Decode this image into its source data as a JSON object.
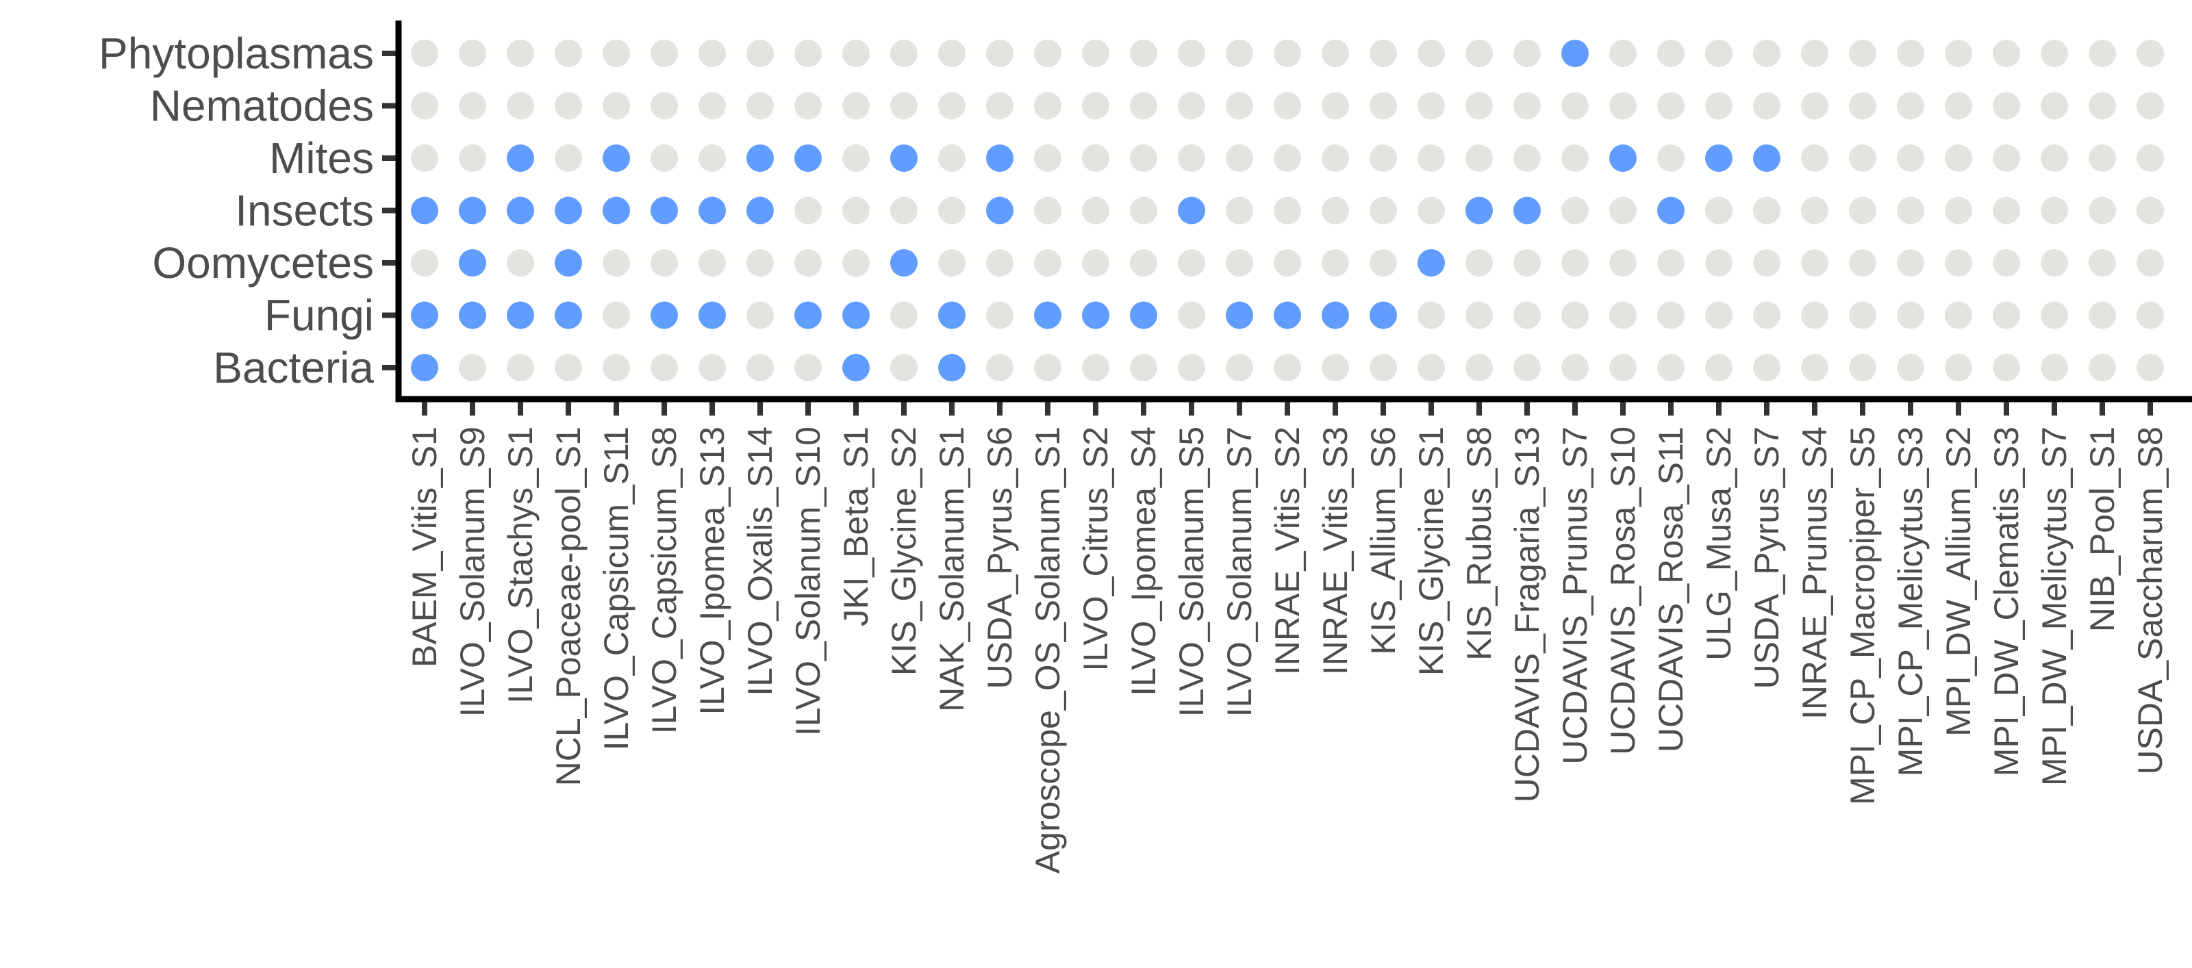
{
  "chart_data": {
    "type": "scatter",
    "title": "",
    "xlabel": "",
    "ylabel": "",
    "grid": false,
    "legend": "none",
    "colors": {
      "present": "#619CFF",
      "absent": "#E3E4DF"
    },
    "categories": [
      "Phytoplasmas",
      "Nematodes",
      "Mites",
      "Insects",
      "Oomycetes",
      "Fungi",
      "Bacteria"
    ],
    "x": [
      "BAEM_Vitis_S1",
      "ILVO_Solanum_S9",
      "ILVO_Stachys_S1",
      "NCL_Poaceae-pool_S1",
      "ILVO_Capsicum_S11",
      "ILVO_Capsicum_S8",
      "ILVO_Ipomea_S13",
      "ILVO_Oxalis_S14",
      "ILVO_Solanum_S10",
      "JKI_Beta_S1",
      "KIS_Glycine_S2",
      "NAK_Solanum_S1",
      "USDA_Pyrus_S6",
      "Agroscope_OS_Solanum_S1",
      "ILVO_Citrus_S2",
      "ILVO_Ipomea_S4",
      "ILVO_Solanum_S5",
      "ILVO_Solanum_S7",
      "INRAE_Vitis_S2",
      "INRAE_Vitis_S3",
      "KIS_Allium_S6",
      "KIS_Glycine_S1",
      "KIS_Rubus_S8",
      "UCDAVIS_Fragaria_S13",
      "UCDAVIS_Prunus_S7",
      "UCDAVIS_Rosa_S10",
      "UCDAVIS_Rosa_S11",
      "ULG_Musa_S2",
      "USDA_Pyrus_S7",
      "INRAE_Prunus_S4",
      "MPI_CP_Macropiper_S5",
      "MPI_CP_Melicytus_S3",
      "MPI_DW_Allium_S2",
      "MPI_DW_Clematis_S3",
      "MPI_DW_Melicytus_S7",
      "NIB_Pool_S1",
      "USDA_Saccharum_S8"
    ],
    "presence": {
      "Phytoplasmas": [
        0,
        0,
        0,
        0,
        0,
        0,
        0,
        0,
        0,
        0,
        0,
        0,
        0,
        0,
        0,
        0,
        0,
        0,
        0,
        0,
        0,
        0,
        0,
        0,
        1,
        0,
        0,
        0,
        0,
        0,
        0,
        0,
        0,
        0,
        0,
        0,
        0
      ],
      "Nematodes": [
        0,
        0,
        0,
        0,
        0,
        0,
        0,
        0,
        0,
        0,
        0,
        0,
        0,
        0,
        0,
        0,
        0,
        0,
        0,
        0,
        0,
        0,
        0,
        0,
        0,
        0,
        0,
        0,
        0,
        0,
        0,
        0,
        0,
        0,
        0,
        0,
        0
      ],
      "Mites": [
        0,
        0,
        1,
        0,
        1,
        0,
        0,
        1,
        1,
        0,
        1,
        0,
        1,
        0,
        0,
        0,
        0,
        0,
        0,
        0,
        0,
        0,
        0,
        0,
        0,
        1,
        0,
        1,
        1,
        0,
        0,
        0,
        0,
        0,
        0,
        0,
        0
      ],
      "Insects": [
        1,
        1,
        1,
        1,
        1,
        1,
        1,
        1,
        0,
        0,
        0,
        0,
        1,
        0,
        0,
        0,
        1,
        0,
        0,
        0,
        0,
        0,
        1,
        1,
        0,
        0,
        1,
        0,
        0,
        0,
        0,
        0,
        0,
        0,
        0,
        0,
        0
      ],
      "Oomycetes": [
        0,
        1,
        0,
        1,
        0,
        0,
        0,
        0,
        0,
        0,
        1,
        0,
        0,
        0,
        0,
        0,
        0,
        0,
        0,
        0,
        0,
        1,
        0,
        0,
        0,
        0,
        0,
        0,
        0,
        0,
        0,
        0,
        0,
        0,
        0,
        0,
        0
      ],
      "Fungi": [
        1,
        1,
        1,
        1,
        0,
        1,
        1,
        0,
        1,
        1,
        0,
        1,
        0,
        1,
        1,
        1,
        0,
        1,
        1,
        1,
        1,
        0,
        0,
        0,
        0,
        0,
        0,
        0,
        0,
        0,
        0,
        0,
        0,
        0,
        0,
        0,
        0
      ],
      "Bacteria": [
        1,
        0,
        0,
        0,
        0,
        0,
        0,
        0,
        0,
        1,
        0,
        1,
        0,
        0,
        0,
        0,
        0,
        0,
        0,
        0,
        0,
        0,
        0,
        0,
        0,
        0,
        0,
        0,
        0,
        0,
        0,
        0,
        0,
        0,
        0,
        0,
        0
      ]
    }
  }
}
